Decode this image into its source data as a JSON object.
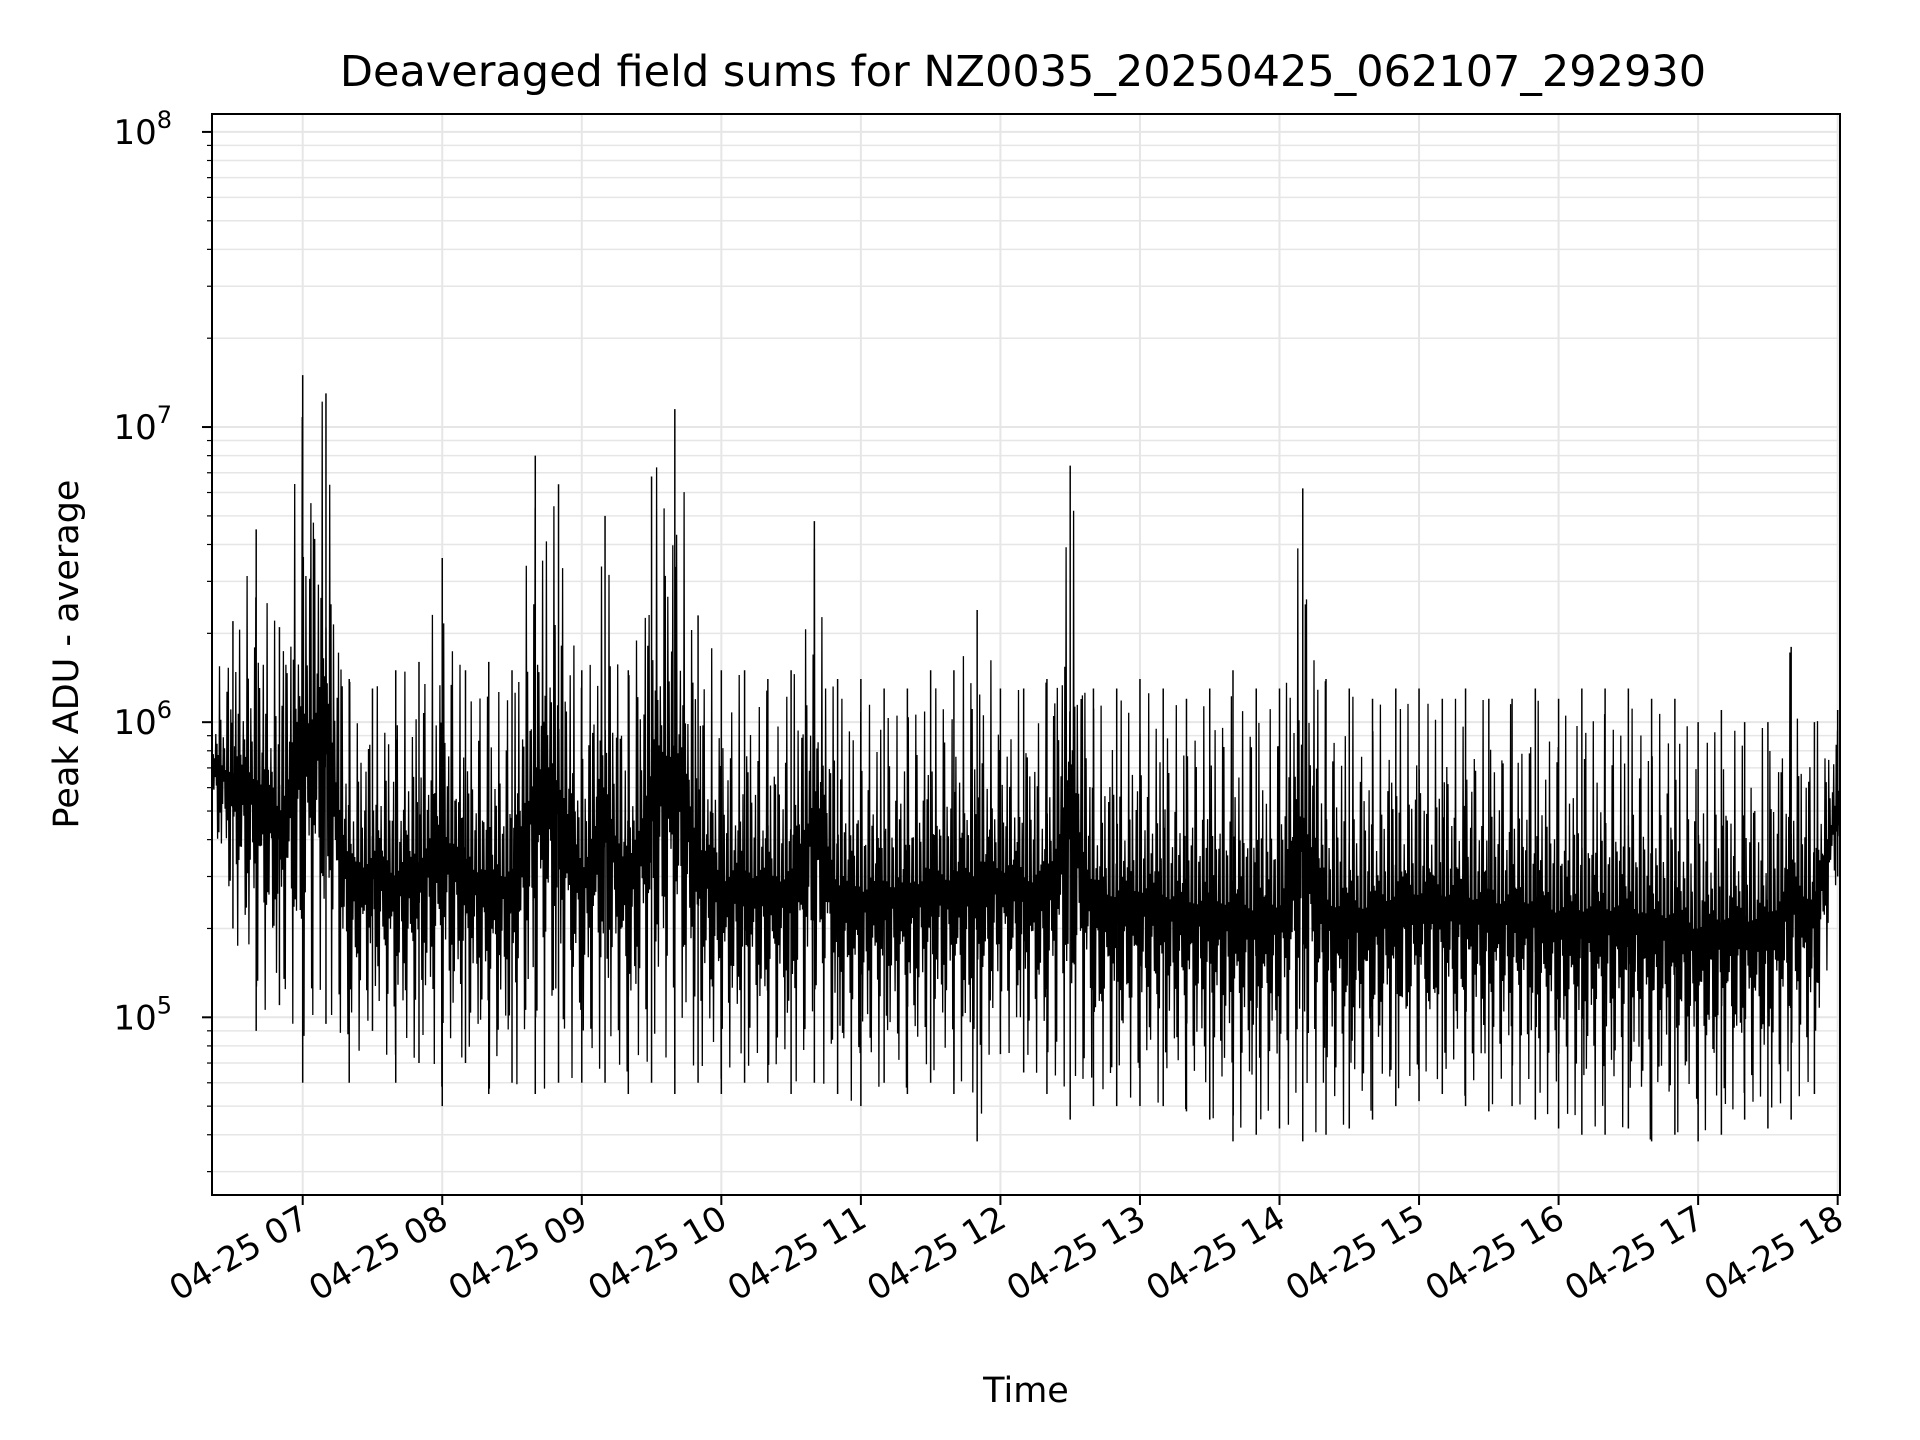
{
  "chart_data": {
    "type": "line",
    "title": "Deaveraged field sums for NZ0035_20250425_062107_292930",
    "xlabel": "Time",
    "ylabel": "Peak ADU - average",
    "yscale": "log",
    "ylim": [
      25000,
      115000000
    ],
    "xlim": [
      "04-25 06:21",
      "04-25 18:01"
    ],
    "grid": true,
    "line_color": "#000000",
    "grid_color": "#e6e6e6",
    "x_ticks": [
      {
        "t": "04-25 07:00",
        "label": "04-25 07"
      },
      {
        "t": "04-25 08:00",
        "label": "04-25 08"
      },
      {
        "t": "04-25 09:00",
        "label": "04-25 09"
      },
      {
        "t": "04-25 10:00",
        "label": "04-25 10"
      },
      {
        "t": "04-25 11:00",
        "label": "04-25 11"
      },
      {
        "t": "04-25 12:00",
        "label": "04-25 12"
      },
      {
        "t": "04-25 13:00",
        "label": "04-25 13"
      },
      {
        "t": "04-25 14:00",
        "label": "04-25 14"
      },
      {
        "t": "04-25 15:00",
        "label": "04-25 15"
      },
      {
        "t": "04-25 16:00",
        "label": "04-25 16"
      },
      {
        "t": "04-25 17:00",
        "label": "04-25 17"
      },
      {
        "t": "04-25 18:00",
        "label": "04-25 18"
      }
    ],
    "y_ticks": [
      {
        "value": 100000,
        "base": "10",
        "exp": "5"
      },
      {
        "value": 1000000,
        "base": "10",
        "exp": "6"
      },
      {
        "value": 10000000,
        "base": "10",
        "exp": "7"
      },
      {
        "value": 100000000,
        "base": "10",
        "exp": "8"
      }
    ],
    "series": [
      {
        "x": [
          "04-25 06:21",
          "04-25 06:30",
          "04-25 06:40",
          "04-25 06:50",
          "04-25 07:00",
          "04-25 07:10",
          "04-25 07:20",
          "04-25 07:30",
          "04-25 07:40",
          "04-25 07:50",
          "04-25 08:00",
          "04-25 08:10",
          "04-25 08:20",
          "04-25 08:30",
          "04-25 08:40",
          "04-25 08:50",
          "04-25 09:00",
          "04-25 09:10",
          "04-25 09:20",
          "04-25 09:30",
          "04-25 09:40",
          "04-25 09:50",
          "04-25 10:00",
          "04-25 10:10",
          "04-25 10:20",
          "04-25 10:30",
          "04-25 10:40",
          "04-25 10:50",
          "04-25 11:00",
          "04-25 11:10",
          "04-25 11:20",
          "04-25 11:30",
          "04-25 11:40",
          "04-25 11:50",
          "04-25 12:00",
          "04-25 12:10",
          "04-25 12:20",
          "04-25 12:30",
          "04-25 12:40",
          "04-25 12:50",
          "04-25 13:00",
          "04-25 13:10",
          "04-25 13:20",
          "04-25 13:30",
          "04-25 13:40",
          "04-25 13:50",
          "04-25 14:00",
          "04-25 14:10",
          "04-25 14:20",
          "04-25 14:30",
          "04-25 14:40",
          "04-25 14:50",
          "04-25 15:00",
          "04-25 15:10",
          "04-25 15:20",
          "04-25 15:30",
          "04-25 15:40",
          "04-25 15:50",
          "04-25 16:00",
          "04-25 16:10",
          "04-25 16:20",
          "04-25 16:30",
          "04-25 16:40",
          "04-25 16:50",
          "04-25 17:00",
          "04-25 17:10",
          "04-25 17:20",
          "04-25 17:30",
          "04-25 17:40",
          "04-25 17:50",
          "04-25 18:00"
        ],
        "high": [
          1350000,
          2200000,
          4500000,
          2100000,
          15000000,
          13000000,
          1400000,
          1300000,
          1500000,
          1600000,
          3600000,
          1500000,
          1600000,
          1500000,
          8000000,
          6400000,
          1500000,
          5000000,
          1500000,
          6800000,
          11500000,
          2300000,
          1500000,
          1500000,
          1400000,
          1500000,
          4800000,
          1400000,
          1400000,
          1300000,
          1300000,
          1500000,
          1500000,
          2400000,
          1300000,
          1300000,
          1400000,
          7400000,
          1300000,
          1300000,
          1400000,
          1300000,
          1200000,
          1300000,
          1500000,
          1300000,
          1300000,
          6200000,
          1400000,
          1300000,
          1200000,
          1300000,
          1300000,
          1200000,
          1300000,
          1200000,
          1200000,
          1300000,
          1200000,
          1300000,
          1300000,
          1300000,
          1200000,
          1200000,
          1000000,
          1100000,
          1000000,
          1000000,
          1800000,
          1000000,
          1100000
        ],
        "low": [
          400000,
          200000,
          90000,
          110000,
          60000,
          95000,
          60000,
          90000,
          60000,
          70000,
          50000,
          70000,
          55000,
          60000,
          55000,
          60000,
          60000,
          60000,
          55000,
          60000,
          55000,
          60000,
          55000,
          60000,
          60000,
          55000,
          60000,
          55000,
          50000,
          60000,
          55000,
          60000,
          55000,
          38000,
          75000,
          65000,
          55000,
          45000,
          50000,
          50000,
          50000,
          50000,
          48000,
          45000,
          38000,
          40000,
          42000,
          38000,
          40000,
          42000,
          45000,
          50000,
          52000,
          55000,
          50000,
          48000,
          50000,
          45000,
          42000,
          40000,
          40000,
          42000,
          38000,
          40000,
          38000,
          40000,
          45000,
          42000,
          45000,
          55000,
          300000
        ]
      }
    ]
  }
}
